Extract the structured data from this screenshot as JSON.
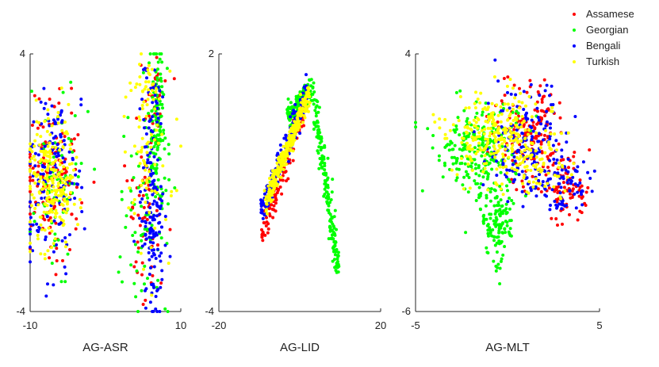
{
  "chart_data": [
    {
      "type": "scatter",
      "title": "",
      "xlabel": "AG-ASR",
      "ylabel": "",
      "xlim": [
        -10,
        10
      ],
      "ylim": [
        -4,
        4
      ],
      "xtick_labels": [
        "-10",
        "10"
      ],
      "ytick_labels": [
        "-4",
        "4"
      ],
      "clusters": [
        {
          "series": "Assamese",
          "points": 150,
          "cx": -6.9,
          "cy": 0.3,
          "sx": 2.3,
          "sy": 1.4
        },
        {
          "series": "Assamese",
          "points": 70,
          "cx": 5.2,
          "cy": -0.6,
          "sx": 1.4,
          "sy": 1.9
        },
        {
          "series": "Assamese",
          "points": 25,
          "cx": 6.5,
          "cy": 2.6,
          "sx": 1.0,
          "sy": 0.6
        },
        {
          "series": "Georgian",
          "points": 70,
          "cx": -6.5,
          "cy": 0.0,
          "sx": 2.2,
          "sy": 1.5
        },
        {
          "series": "Georgian",
          "points": 150,
          "cx": 6.8,
          "cy": 1.5,
          "sx": 0.8,
          "sy": 1.6
        },
        {
          "series": "Georgian",
          "points": 55,
          "cx": 4.5,
          "cy": -1.5,
          "sx": 1.6,
          "sy": 1.7
        },
        {
          "series": "Bengali",
          "points": 140,
          "cx": -7.0,
          "cy": 0.2,
          "sx": 2.2,
          "sy": 1.5
        },
        {
          "series": "Bengali",
          "points": 140,
          "cx": 6.3,
          "cy": -1.3,
          "sx": 0.9,
          "sy": 1.6
        },
        {
          "series": "Bengali",
          "points": 30,
          "cx": 6.0,
          "cy": 2.4,
          "sx": 1.0,
          "sy": 0.7
        },
        {
          "series": "Turkish",
          "points": 230,
          "cx": -7.2,
          "cy": 0.0,
          "sx": 1.9,
          "sy": 1.2
        },
        {
          "series": "Turkish",
          "points": 70,
          "cx": 5.4,
          "cy": 0.6,
          "sx": 1.8,
          "sy": 1.9
        },
        {
          "series": "Turkish",
          "points": 25,
          "cx": 5.5,
          "cy": 2.9,
          "sx": 1.3,
          "sy": 0.5
        }
      ]
    },
    {
      "type": "scatter",
      "title": "",
      "xlabel": "AG-LID",
      "ylabel": "",
      "xlim": [
        -20,
        20
      ],
      "ylim": [
        -4,
        2
      ],
      "xtick_labels": [
        "-20",
        "20"
      ],
      "ytick_labels": [
        "-4",
        "2"
      ],
      "paths": [
        {
          "series": "Assamese",
          "points": 130,
          "from": [
            -9.4,
            -2.3
          ],
          "to": [
            2.0,
            1.1
          ],
          "width": 0.7
        },
        {
          "series": "Bengali",
          "points": 170,
          "from": [
            -9.8,
            -1.8
          ],
          "to": [
            2.0,
            1.2
          ],
          "width": 0.7
        },
        {
          "series": "Turkish",
          "points": 280,
          "from": [
            -8.5,
            -1.5
          ],
          "to": [
            2.4,
            1.1
          ],
          "width": 0.55
        },
        {
          "series": "Georgian",
          "points": 140,
          "from": [
            -3.0,
            0.5
          ],
          "to": [
            3.0,
            1.3
          ],
          "width": 0.5
        },
        {
          "series": "Georgian",
          "points": 170,
          "from": [
            3.0,
            1.3
          ],
          "to": [
            9.5,
            -3.1
          ],
          "width": 0.55
        }
      ]
    },
    {
      "type": "scatter",
      "title": "",
      "xlabel": "AG-MLT",
      "ylabel": "",
      "xlim": [
        -5,
        5
      ],
      "ylim": [
        -6,
        4
      ],
      "xtick_labels": [
        "-5",
        "5"
      ],
      "ytick_labels": [
        "-6",
        "4"
      ],
      "clusters": [
        {
          "series": "Assamese",
          "points": 160,
          "cx": 1.2,
          "cy": 0.9,
          "sx": 1.1,
          "sy": 1.2
        },
        {
          "series": "Assamese",
          "points": 80,
          "cx": 3.3,
          "cy": -1.2,
          "sx": 0.8,
          "sy": 0.7
        },
        {
          "series": "Georgian",
          "points": 230,
          "cx": -1.6,
          "cy": 0.3,
          "sx": 1.3,
          "sy": 1.0
        },
        {
          "series": "Georgian",
          "points": 130,
          "cx": -0.6,
          "cy": -2.6,
          "sx": 0.5,
          "sy": 1.0
        },
        {
          "series": "Bengali",
          "points": 170,
          "cx": 1.1,
          "cy": 0.5,
          "sx": 1.2,
          "sy": 1.2
        },
        {
          "series": "Bengali",
          "points": 80,
          "cx": 3.1,
          "cy": -1.1,
          "sx": 0.9,
          "sy": 0.6
        },
        {
          "series": "Turkish",
          "points": 260,
          "cx": -0.5,
          "cy": 0.8,
          "sx": 1.5,
          "sy": 1.0
        },
        {
          "series": "Turkish",
          "points": 60,
          "cx": 1.6,
          "cy": -0.4,
          "sx": 1.2,
          "sy": 0.7
        }
      ]
    }
  ],
  "legend": {
    "placement": "top-right",
    "items": [
      {
        "label": "Assamese",
        "color": "#ff0000"
      },
      {
        "label": "Georgian",
        "color": "#00ff00"
      },
      {
        "label": "Bengali",
        "color": "#0000ff"
      },
      {
        "label": "Turkish",
        "color": "#ffff00"
      }
    ]
  },
  "draw_order": [
    "Assamese",
    "Georgian",
    "Bengali",
    "Turkish"
  ]
}
